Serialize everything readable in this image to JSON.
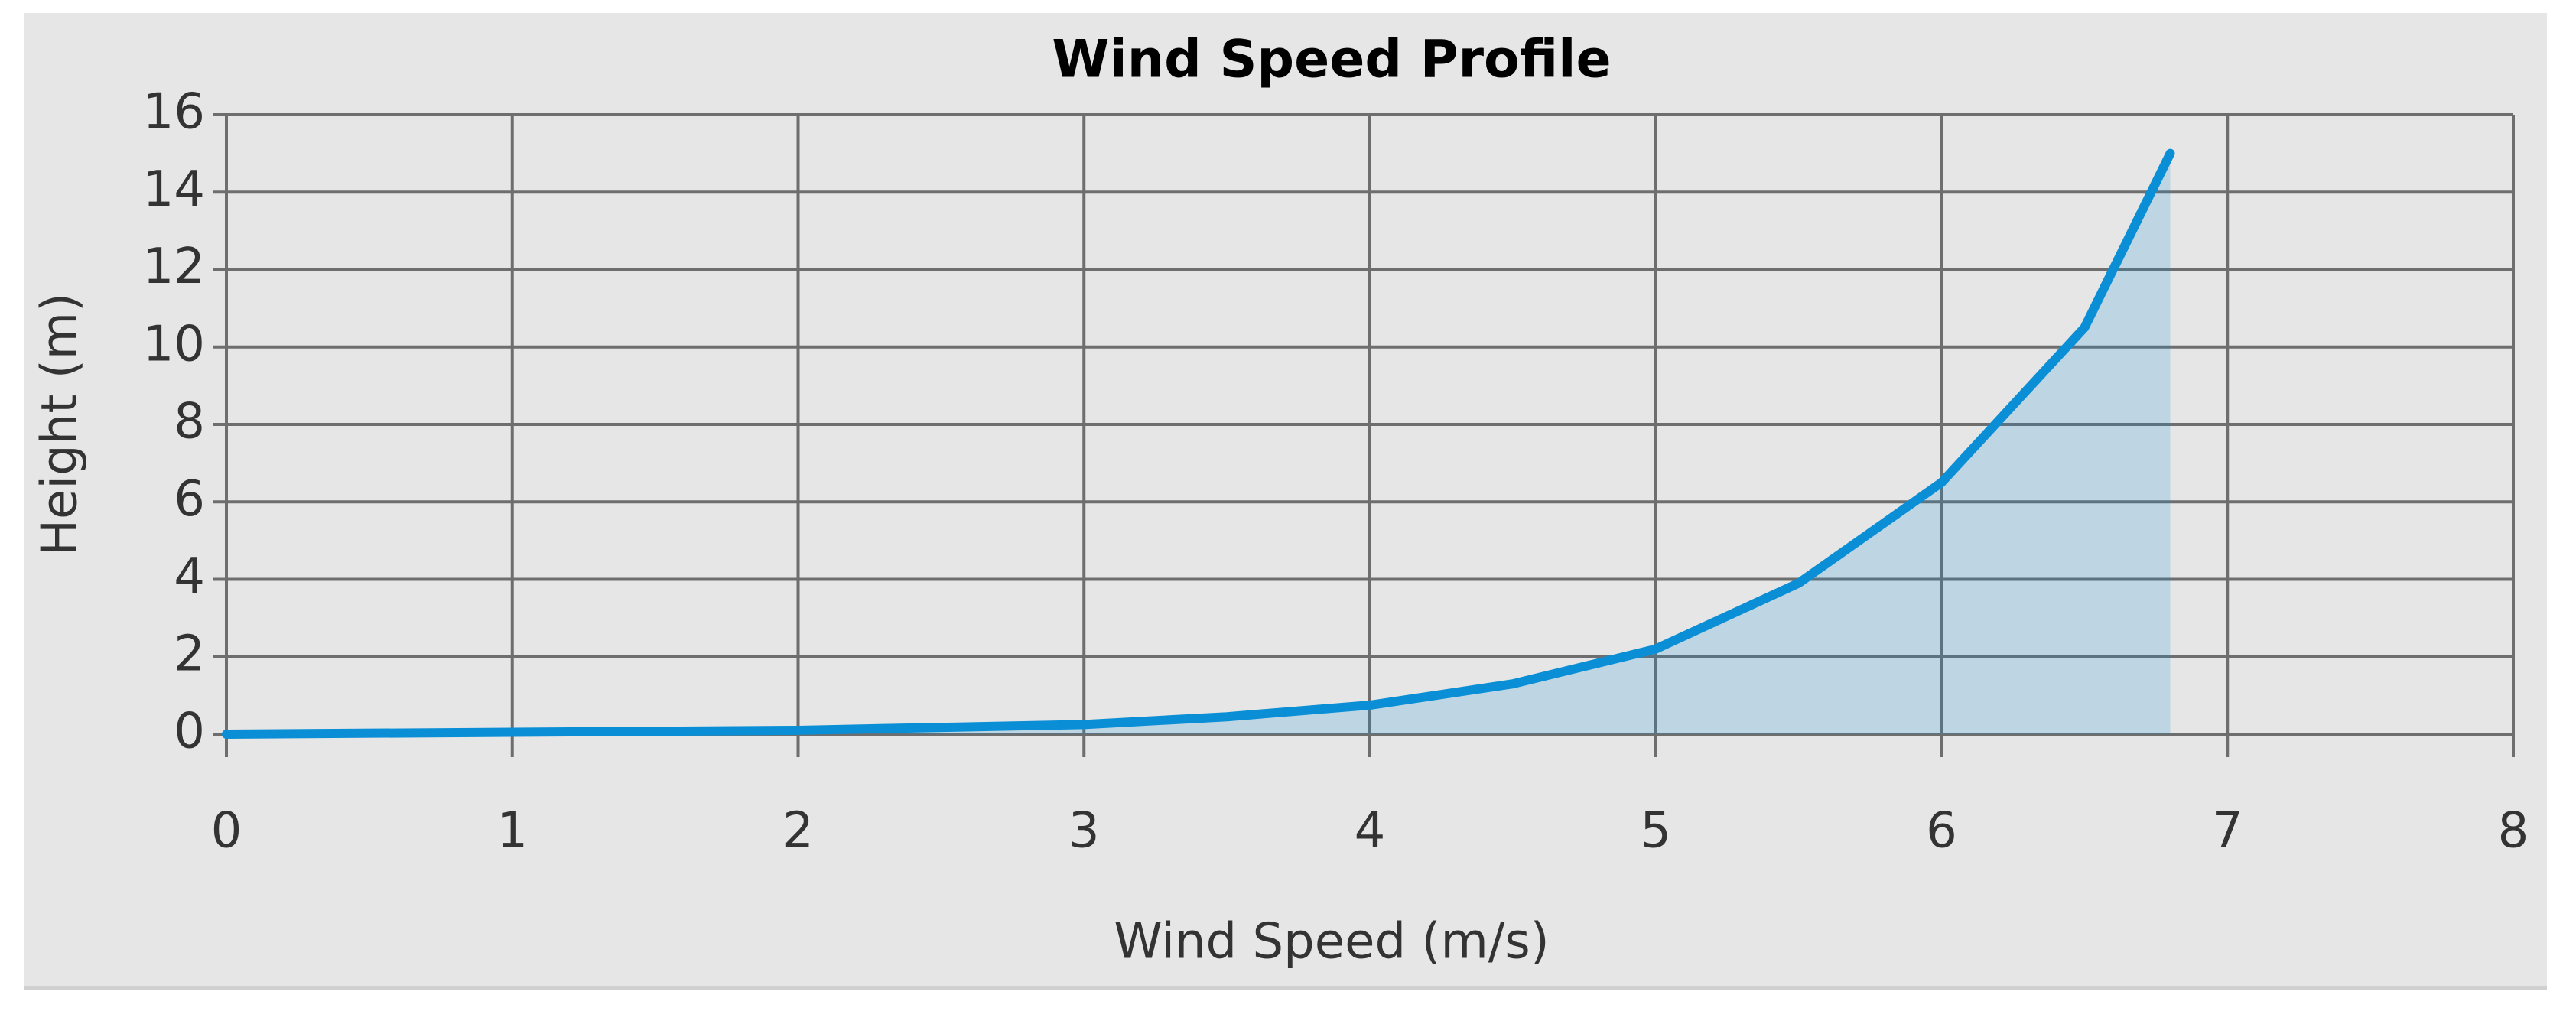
{
  "chart_data": {
    "type": "area",
    "title": "Wind Speed Profile",
    "x_label": "Wind Speed (m/s)",
    "y_label": "Height (m)",
    "x": [
      0,
      1,
      2,
      3,
      3.5,
      4,
      4.5,
      5,
      5.5,
      6,
      6.5,
      6.8
    ],
    "y": [
      0,
      0.05,
      0.1,
      0.25,
      0.45,
      0.75,
      1.3,
      2.2,
      3.9,
      6.5,
      10.5,
      15
    ],
    "color": "#0a8fd6",
    "xlim": [
      0,
      8
    ],
    "xticks": [
      0,
      1,
      2,
      3,
      4,
      5,
      6,
      7,
      8
    ],
    "ylim": [
      0,
      16
    ],
    "yticks": [
      0,
      2,
      4,
      6,
      8,
      10,
      12,
      14,
      16
    ],
    "grid": true
  }
}
